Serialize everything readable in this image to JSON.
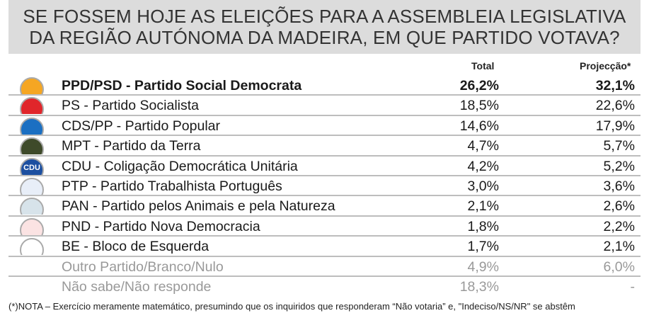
{
  "title_lines": [
    "SE FOSSEM HOJE AS ELEIÇÕES PARA A ASSEMBLEIA LEGISLATIVA",
    "DA REGIÃO AUTÓNOMA DA MADEIRA, EM QUE PARTIDO VOTAVA?"
  ],
  "headers": {
    "total": "Total",
    "projection": "Projecção*"
  },
  "chart_data": {
    "type": "table",
    "columns": [
      "Total",
      "Projecção*"
    ],
    "rows": [
      {
        "party": "PPD/PSD - Partido Social Democrata",
        "total": "26,2%",
        "projection": "32,1%",
        "logo": "psd-logo",
        "logo_color": "#f5a623",
        "emphasis": true
      },
      {
        "party": "PS - Partido Socialista",
        "total": "18,5%",
        "projection": "22,6%",
        "logo": "ps-fist-logo",
        "logo_color": "#e0262b"
      },
      {
        "party": "CDS/PP - Partido Popular",
        "total": "14,6%",
        "projection": "17,9%",
        "logo": "cds-logo",
        "logo_color": "#1b6fc2"
      },
      {
        "party": "MPT - Partido da Terra",
        "total": "4,7%",
        "projection": "5,7%",
        "logo": "mpt-clover-logo",
        "logo_color": "#3e4a2a"
      },
      {
        "party": "CDU - Coligação Democrática Unitária",
        "total": "4,2%",
        "projection": "5,2%",
        "logo": "cdu-logo",
        "logo_color": "#1c4fa0",
        "logo_text": "CDU"
      },
      {
        "party": "PTP - Partido Trabalhista Português",
        "total": "3,0%",
        "projection": "3,6%",
        "logo": "ptp-logo",
        "logo_color": "#e8eef8"
      },
      {
        "party": "PAN - Partido pelos Animais e pela Natureza",
        "total": "2,1%",
        "projection": "2,6%",
        "logo": "pan-logo",
        "logo_color": "#d7e3ea"
      },
      {
        "party": "PND - Partido Nova Democracia",
        "total": "1,8%",
        "projection": "2,2%",
        "logo": "pnd-heart-logo",
        "logo_color": "#fbe3e3"
      },
      {
        "party": "BE - Bloco de Esquerda",
        "total": "1,7%",
        "projection": "2,1%",
        "logo": "be-logo",
        "logo_color": "#ffffff"
      },
      {
        "party": "Outro Partido/Branco/Nulo",
        "total": "4,9%",
        "projection": "6,0%",
        "muted": true
      },
      {
        "party": "Não sabe/Não responde",
        "total": "18,3%",
        "projection": "-",
        "muted": true
      }
    ]
  },
  "note": "(*)NOTA – Exercício meramente matemático, presumindo que os inquiridos que responderam “Não votaria” e, \"Indeciso/NS/NR\" se abstêm"
}
